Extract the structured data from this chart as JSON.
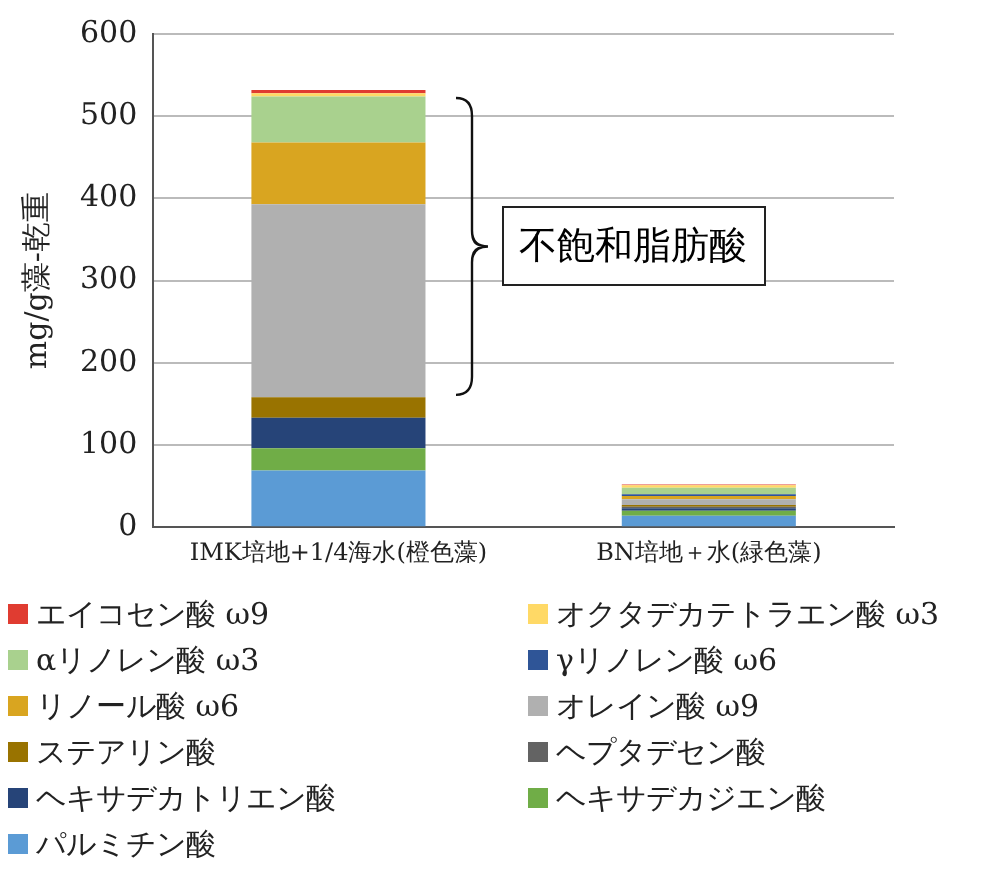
{
  "chart_data": {
    "type": "bar",
    "stacked": true,
    "ylabel": "mg/g藻-乾重",
    "categories": [
      "IMK培地+1/4海水(橙色藻)",
      "BN培地＋水(緑色藻)"
    ],
    "series": [
      {
        "name": "パルミチン酸",
        "color": "#5b9bd5",
        "values": [
          69,
          14
        ]
      },
      {
        "name": "ヘキサデカジエン酸",
        "color": "#70ad47",
        "values": [
          27,
          6
        ]
      },
      {
        "name": "ヘキサデカトリエン酸",
        "color": "#264478",
        "values": [
          37,
          3
        ]
      },
      {
        "name": "ヘプタデセン酸",
        "color": "#636363",
        "values": [
          0,
          2
        ]
      },
      {
        "name": "ステアリン酸",
        "color": "#997300",
        "values": [
          25,
          2
        ]
      },
      {
        "name": "オレイン酸 ω9",
        "color": "#b0b0b0",
        "values": [
          235,
          7
        ]
      },
      {
        "name": "リノール酸 ω6",
        "color": "#d9a520",
        "values": [
          75,
          4
        ]
      },
      {
        "name": "γリノレン酸 ω6",
        "color": "#2f5597",
        "values": [
          0,
          2
        ]
      },
      {
        "name": "αリノレン酸 ω3",
        "color": "#a9d18e",
        "values": [
          56,
          8
        ]
      },
      {
        "name": "オクタデカテトラエン酸 ω3",
        "color": "#ffd966",
        "values": [
          4,
          3
        ]
      },
      {
        "name": "エイコセン酸 ω9",
        "color": "#e03c31",
        "values": [
          4,
          1
        ]
      }
    ],
    "ylim": [
      0,
      600
    ],
    "yticks": [
      0,
      100,
      200,
      300,
      400,
      500,
      600
    ],
    "grid": "y",
    "legend": "bottom",
    "annotations": [
      "不飽和脂肪酸"
    ]
  }
}
